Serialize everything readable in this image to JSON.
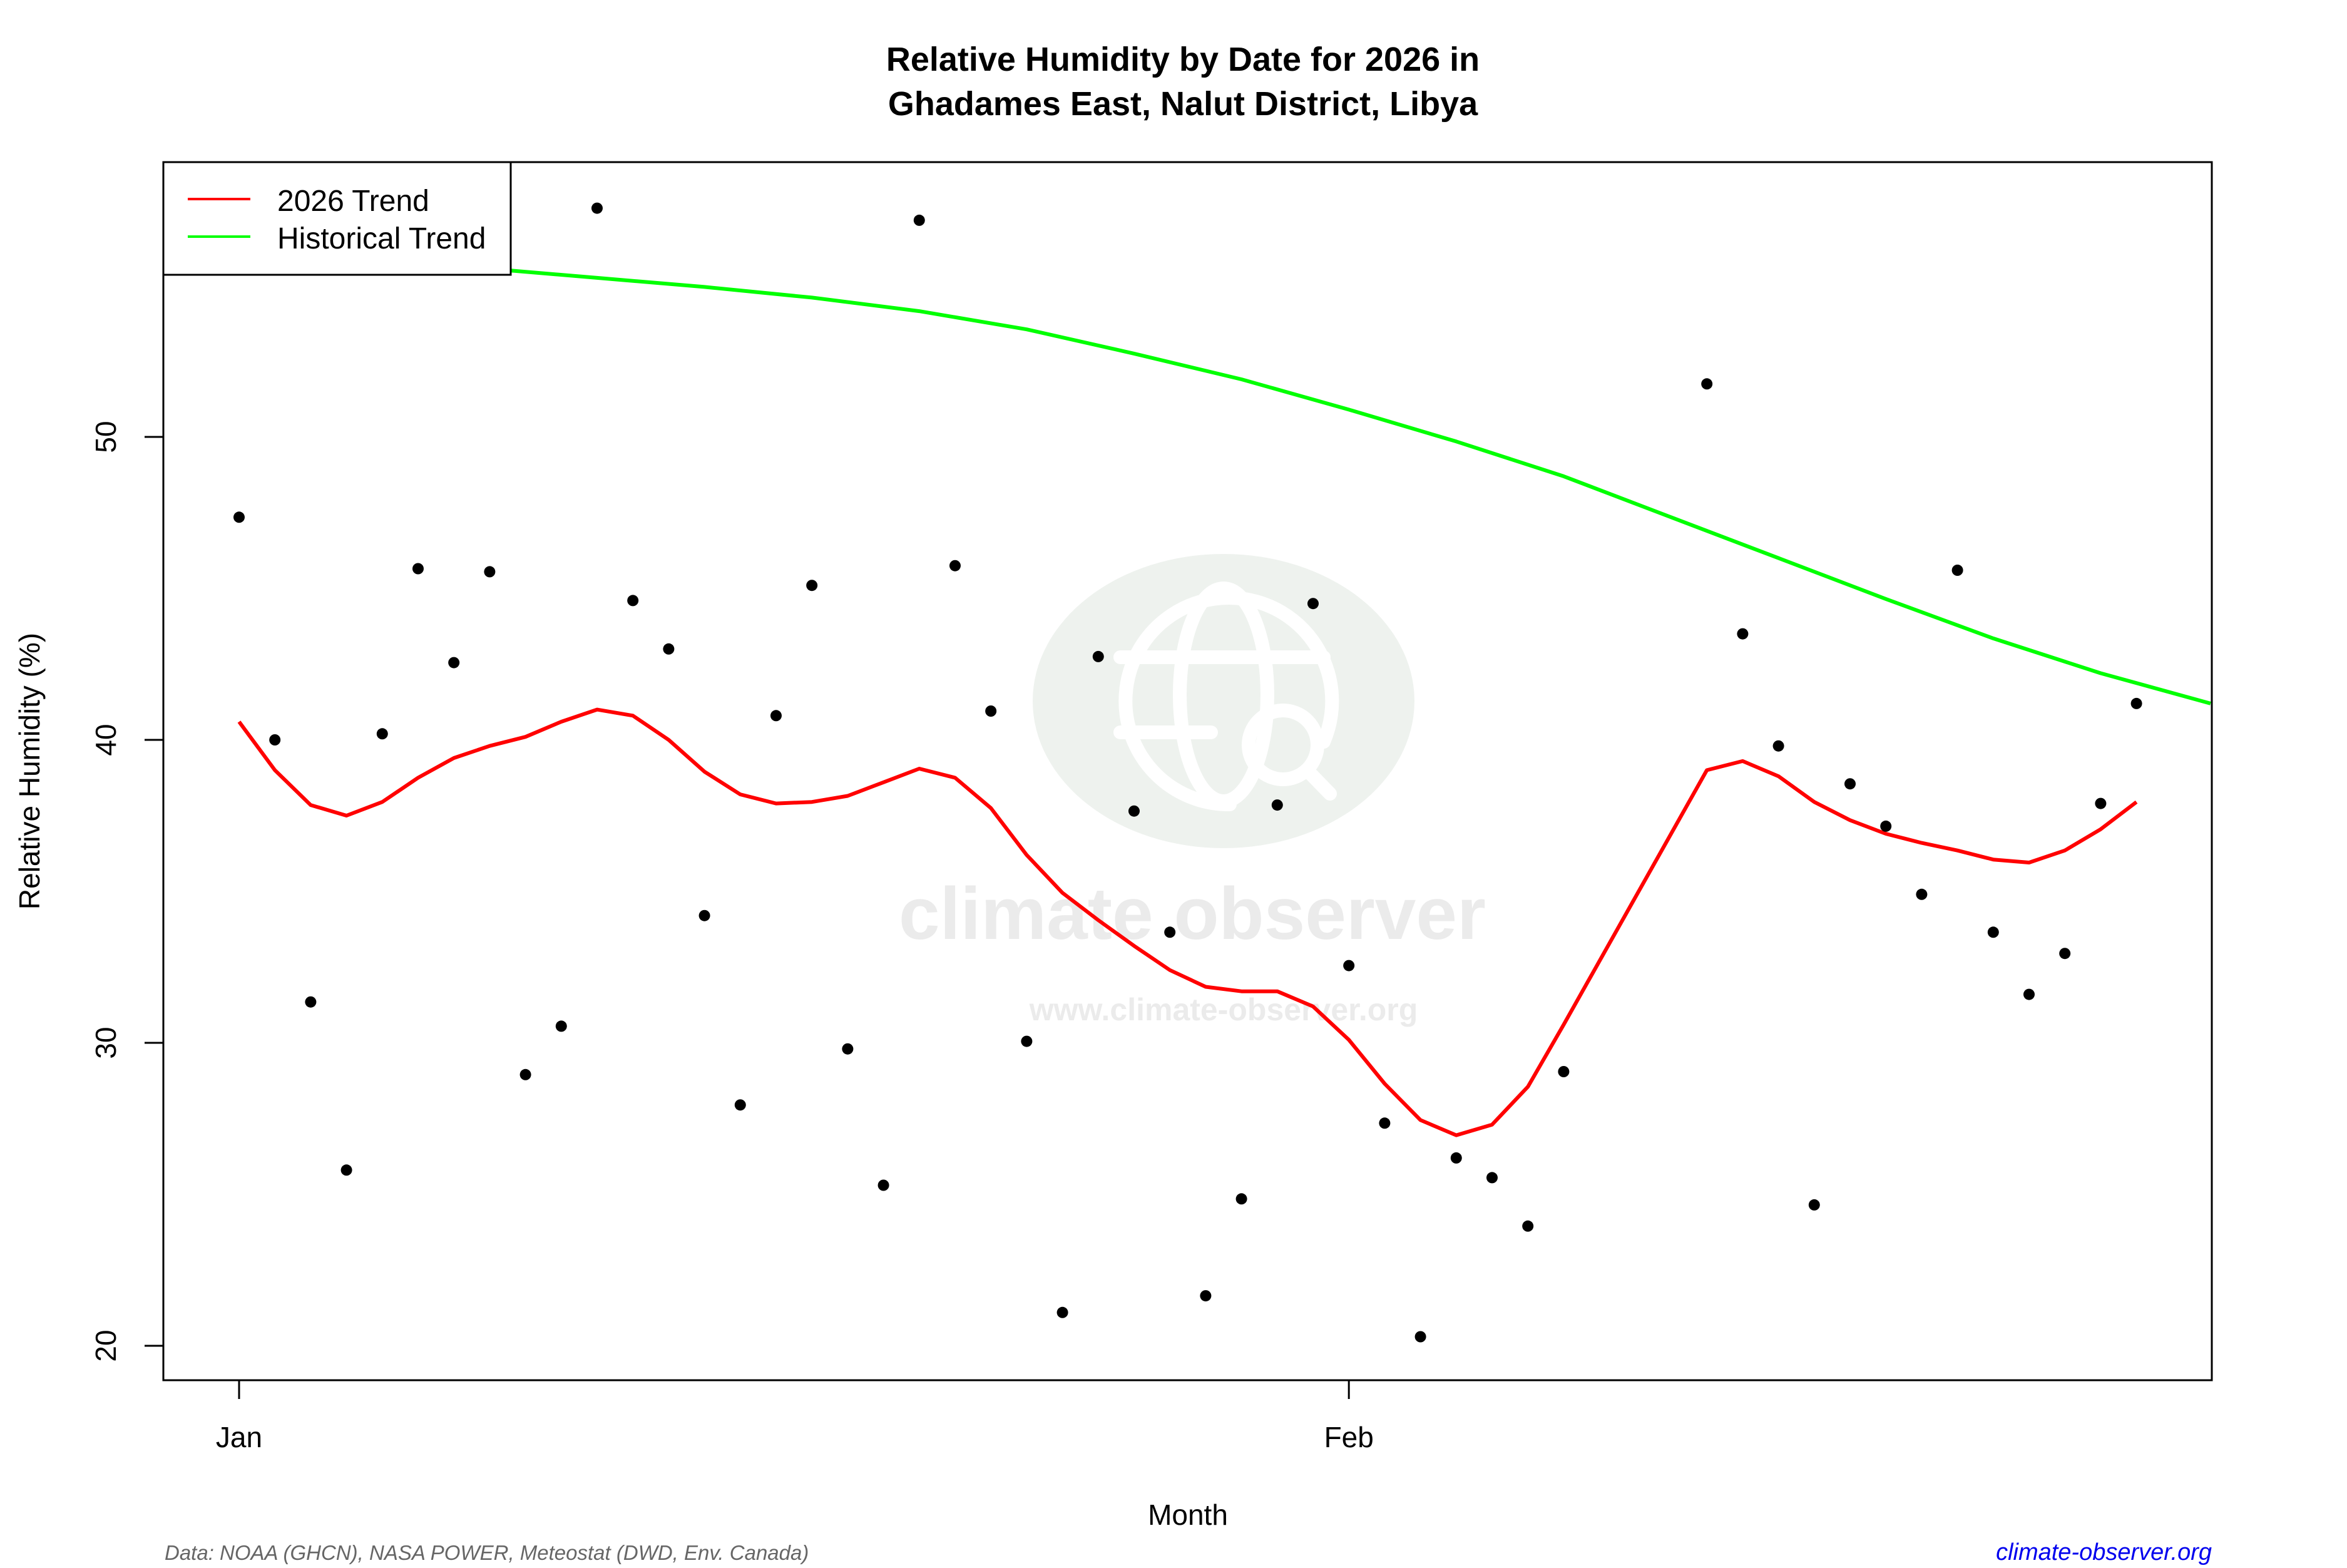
{
  "chart_data": {
    "type": "scatter",
    "title": "Relative Humidity by Date for 2026 in\nGhadames East, Nalut District, Libya",
    "title_lines": [
      "Relative Humidity by Date for 2026 in",
      "Ghadames East, Nalut District, Libya"
    ],
    "xlabel": "Month",
    "ylabel": "Relative Humidity (%)",
    "x_ticks": [
      {
        "label": "Jan",
        "day": 1
      },
      {
        "label": "Feb",
        "day": 32
      }
    ],
    "y_ticks": [
      20,
      30,
      40,
      50
    ],
    "xlim": [
      -1.1,
      56.3
    ],
    "ylim": [
      18.85,
      59.0
    ],
    "grid": false,
    "legend_position": "top-left",
    "legend": [
      {
        "label": "2026 Trend",
        "color": "#ff0000"
      },
      {
        "label": "Historical Trend",
        "color": "#00ff00"
      }
    ],
    "series": [
      {
        "name": "Daily observations",
        "kind": "points",
        "color": "#000000",
        "x": [
          1,
          2,
          3,
          4,
          5,
          6,
          7,
          8,
          9,
          10,
          11,
          12,
          13,
          14,
          15,
          16,
          17,
          18,
          19,
          20,
          21,
          22,
          23,
          24,
          25,
          26,
          27,
          28,
          29,
          30,
          31,
          32,
          33,
          34,
          35,
          36,
          37,
          38,
          42,
          43,
          44,
          45,
          46,
          47,
          48,
          49,
          50,
          51,
          52,
          53,
          54
        ],
        "y": [
          47.35,
          40.0,
          31.35,
          25.8,
          40.2,
          45.65,
          42.55,
          45.55,
          28.95,
          30.55,
          57.55,
          44.6,
          43.0,
          34.2,
          27.95,
          40.8,
          45.1,
          29.8,
          25.3,
          57.15,
          45.75,
          40.95,
          30.05,
          21.1,
          42.75,
          37.65,
          33.65,
          21.65,
          24.85,
          37.85,
          44.5,
          32.55,
          27.35,
          20.3,
          26.2,
          25.55,
          23.95,
          29.05,
          51.75,
          43.5,
          39.8,
          24.65,
          38.55,
          37.15,
          34.9,
          45.6,
          33.65,
          31.6,
          32.95,
          37.9,
          41.2
        ]
      },
      {
        "name": "2026 Trend",
        "kind": "line",
        "color": "#ff0000",
        "x": [
          1,
          2,
          3,
          4,
          5,
          6,
          7,
          8,
          9,
          10,
          11,
          12,
          13,
          14,
          15,
          16,
          17,
          18,
          19,
          20,
          21,
          22,
          23,
          24,
          25,
          26,
          27,
          28,
          29,
          30,
          31,
          32,
          33,
          34,
          35,
          36,
          37,
          38,
          42,
          43,
          44,
          45,
          46,
          47,
          48,
          49,
          50,
          51,
          52,
          53,
          54
        ],
        "y": [
          40.6,
          39.0,
          37.85,
          37.5,
          37.95,
          38.75,
          39.4,
          39.8,
          40.1,
          40.6,
          41.0,
          40.8,
          40.0,
          38.95,
          38.2,
          37.9,
          37.95,
          38.15,
          38.6,
          39.05,
          38.75,
          37.75,
          36.2,
          34.95,
          34.05,
          33.2,
          32.4,
          31.85,
          31.7,
          31.7,
          31.2,
          30.1,
          28.65,
          27.45,
          26.95,
          27.3,
          28.55,
          30.6,
          39.0,
          39.3,
          38.8,
          37.95,
          37.35,
          36.9,
          36.6,
          36.35,
          36.05,
          35.95,
          36.35,
          37.05,
          37.95
        ]
      },
      {
        "name": "Historical Trend",
        "kind": "line",
        "color": "#00ff00",
        "x": [
          -1.1,
          2,
          5,
          8,
          11,
          14,
          17,
          20,
          23,
          26,
          29,
          32,
          35,
          38,
          41,
          44,
          47,
          50,
          53,
          56.3
        ],
        "y": [
          56.3,
          56.1,
          55.85,
          55.55,
          55.25,
          54.95,
          54.6,
          54.15,
          53.55,
          52.75,
          51.9,
          50.9,
          49.85,
          48.7,
          47.35,
          46.0,
          44.65,
          43.35,
          42.2,
          41.2
        ]
      }
    ]
  },
  "footer": {
    "source": "Data: NOAA (GHCN), NASA POWER, Meteostat (DWD, Env. Canada)",
    "site": "climate-observer.org"
  },
  "watermark": {
    "brand": "climate observer",
    "url": "www.climate-observer.org",
    "icon": "globe-search-icon"
  },
  "colors": {
    "trend_2026": "#ff0000",
    "historical": "#00ff00",
    "points": "#000000",
    "footer_source": "#666666",
    "footer_site": "#0000ee",
    "watermark": "#e6ece6"
  }
}
